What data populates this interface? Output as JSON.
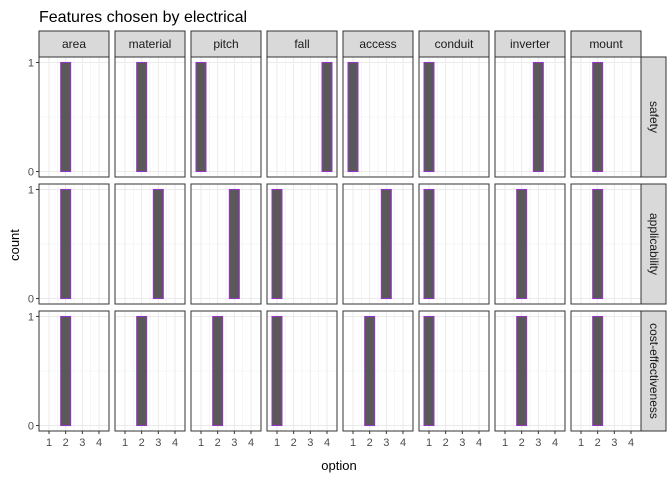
{
  "chart_data": {
    "type": "bar",
    "title": "Features chosen by electrical",
    "xlabel": "option",
    "ylabel": "count",
    "x_ticks": [
      1,
      2,
      3,
      4
    ],
    "y_ticks": [
      0,
      1
    ],
    "xlim": [
      0.4,
      4.6
    ],
    "ylim": [
      -0.05,
      1.05
    ],
    "grid": true,
    "bar_fill": "#595959",
    "bar_outline": "#9933cc",
    "strip_fill": "#d9d9d9",
    "columns": [
      "area",
      "material",
      "pitch",
      "fall",
      "access",
      "conduit",
      "inverter",
      "mount"
    ],
    "rows": [
      "safety",
      "applicability",
      "cost-effectiveness"
    ],
    "panels": [
      {
        "column": "area",
        "row": "safety",
        "option": 2,
        "count": 1
      },
      {
        "column": "material",
        "row": "safety",
        "option": 2,
        "count": 1
      },
      {
        "column": "pitch",
        "row": "safety",
        "option": 1,
        "count": 1
      },
      {
        "column": "fall",
        "row": "safety",
        "option": 4,
        "count": 1
      },
      {
        "column": "access",
        "row": "safety",
        "option": 1,
        "count": 1
      },
      {
        "column": "conduit",
        "row": "safety",
        "option": 1,
        "count": 1
      },
      {
        "column": "inverter",
        "row": "safety",
        "option": 3,
        "count": 1
      },
      {
        "column": "mount",
        "row": "safety",
        "option": 2,
        "count": 1
      },
      {
        "column": "area",
        "row": "applicability",
        "option": 2,
        "count": 1
      },
      {
        "column": "material",
        "row": "applicability",
        "option": 3,
        "count": 1
      },
      {
        "column": "pitch",
        "row": "applicability",
        "option": 3,
        "count": 1
      },
      {
        "column": "fall",
        "row": "applicability",
        "option": 1,
        "count": 1
      },
      {
        "column": "access",
        "row": "applicability",
        "option": 3,
        "count": 1
      },
      {
        "column": "conduit",
        "row": "applicability",
        "option": 1,
        "count": 1
      },
      {
        "column": "inverter",
        "row": "applicability",
        "option": 2,
        "count": 1
      },
      {
        "column": "mount",
        "row": "applicability",
        "option": 2,
        "count": 1
      },
      {
        "column": "area",
        "row": "cost-effectiveness",
        "option": 2,
        "count": 1
      },
      {
        "column": "material",
        "row": "cost-effectiveness",
        "option": 2,
        "count": 1
      },
      {
        "column": "pitch",
        "row": "cost-effectiveness",
        "option": 2,
        "count": 1
      },
      {
        "column": "fall",
        "row": "cost-effectiveness",
        "option": 1,
        "count": 1
      },
      {
        "column": "access",
        "row": "cost-effectiveness",
        "option": 2,
        "count": 1
      },
      {
        "column": "conduit",
        "row": "cost-effectiveness",
        "option": 1,
        "count": 1
      },
      {
        "column": "inverter",
        "row": "cost-effectiveness",
        "option": 2,
        "count": 1
      },
      {
        "column": "mount",
        "row": "cost-effectiveness",
        "option": 2,
        "count": 1
      }
    ]
  }
}
